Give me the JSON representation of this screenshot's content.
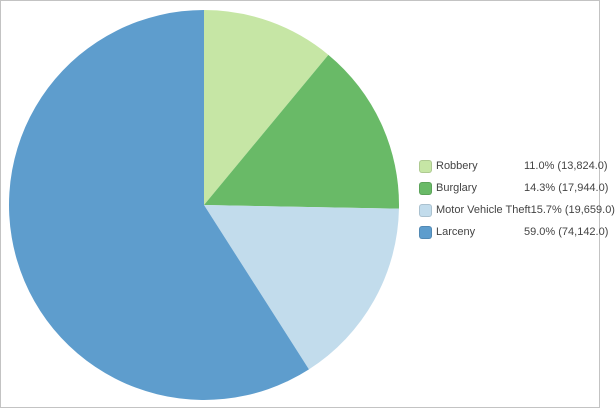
{
  "chart_data": {
    "type": "pie",
    "categories": [
      "Robbery",
      "Burglary",
      "Motor Vehicle Theft",
      "Larceny"
    ],
    "values": [
      13824.0,
      17944.0,
      19659.0,
      74142.0
    ],
    "percents": [
      11.0,
      14.3,
      15.7,
      59.0
    ],
    "legend_value_labels": [
      "11.0% (13,824.0)",
      "14.3% (17,944.0)",
      "15.7% (19,659.0)",
      "59.0% (74,142.0)"
    ],
    "colors": [
      "#c6e6a5",
      "#69ba67",
      "#c2dcec",
      "#5e9dcd"
    ],
    "start_angle_deg": 0,
    "direction": "clockwise",
    "legend_position": "right",
    "background_color": "#ffffff",
    "border_color": "#c3c3c3",
    "text_color": "#444444"
  }
}
